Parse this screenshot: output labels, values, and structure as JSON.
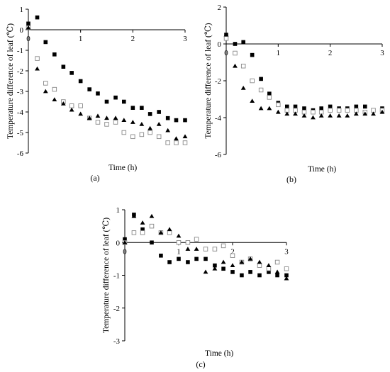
{
  "chart_data": [
    {
      "type": "scatter",
      "panel_label": "(a)",
      "xlabel": "Time (h)",
      "ylabel": "Temperature difference of leaf (℃)",
      "xlim": [
        0,
        3
      ],
      "ylim": [
        -6,
        1
      ],
      "xticks": [
        0,
        1,
        2,
        3
      ],
      "yticks": [
        1,
        0,
        -1,
        -2,
        -3,
        -4,
        -5,
        -6
      ],
      "grid": false,
      "series": [
        {
          "marker": "filled-square",
          "color": "#000000",
          "x": [
            0,
            0.17,
            0.33,
            0.5,
            0.67,
            0.83,
            1.0,
            1.17,
            1.33,
            1.5,
            1.67,
            1.83,
            2.0,
            2.17,
            2.33,
            2.5,
            2.67,
            2.83,
            3.0
          ],
          "y": [
            0.3,
            0.6,
            -0.6,
            -1.2,
            -1.8,
            -2.1,
            -2.5,
            -2.9,
            -3.1,
            -3.5,
            -3.3,
            -3.5,
            -3.8,
            -3.8,
            -4.1,
            -4.0,
            -4.3,
            -4.4,
            -4.4
          ]
        },
        {
          "marker": "open-square",
          "color": "#888888",
          "x": [
            0,
            0.17,
            0.33,
            0.5,
            0.67,
            0.83,
            1.0,
            1.17,
            1.33,
            1.5,
            1.67,
            1.83,
            2.0,
            2.17,
            2.33,
            2.5,
            2.67,
            2.83,
            3.0
          ],
          "y": [
            0.1,
            -1.4,
            -2.6,
            -2.9,
            -3.5,
            -3.7,
            -3.7,
            -4.3,
            -4.5,
            -4.6,
            -4.5,
            -5.0,
            -5.2,
            -5.1,
            -5.0,
            -5.2,
            -5.5,
            -5.5,
            -5.5
          ]
        },
        {
          "marker": "filled-triangle",
          "color": "#000000",
          "x": [
            0,
            0.17,
            0.33,
            0.5,
            0.67,
            0.83,
            1.0,
            1.17,
            1.33,
            1.5,
            1.67,
            1.83,
            2.0,
            2.17,
            2.33,
            2.5,
            2.67,
            2.83,
            3.0
          ],
          "y": [
            0.1,
            -1.9,
            -3.0,
            -3.4,
            -3.6,
            -3.9,
            -4.1,
            -4.3,
            -4.2,
            -4.3,
            -4.3,
            -4.4,
            -4.5,
            -4.6,
            -4.8,
            -4.6,
            -4.9,
            -5.3,
            -5.2
          ]
        }
      ]
    },
    {
      "type": "scatter",
      "panel_label": "(b)",
      "xlabel": "Time (h)",
      "ylabel": "Temperature difference of leaf (℃)",
      "xlim": [
        0,
        3
      ],
      "ylim": [
        -6,
        2
      ],
      "xticks": [
        0,
        1,
        2,
        3
      ],
      "yticks": [
        2,
        0,
        -2,
        -4,
        -6
      ],
      "grid": false,
      "series": [
        {
          "marker": "filled-square",
          "color": "#000000",
          "x": [
            0,
            0.17,
            0.33,
            0.5,
            0.67,
            0.83,
            1.0,
            1.17,
            1.33,
            1.5,
            1.67,
            1.83,
            2.0,
            2.17,
            2.33,
            2.5,
            2.67,
            2.83,
            3.0
          ],
          "y": [
            0.5,
            0.0,
            0.1,
            -0.6,
            -1.9,
            -2.7,
            -3.2,
            -3.4,
            -3.4,
            -3.5,
            -3.6,
            -3.5,
            -3.4,
            -3.5,
            -3.5,
            -3.4,
            -3.4,
            -3.6,
            -3.5
          ]
        },
        {
          "marker": "open-square",
          "color": "#888888",
          "x": [
            0,
            0.17,
            0.33,
            0.5,
            0.67,
            0.83,
            1.0,
            1.17,
            1.33,
            1.5,
            1.67,
            1.83,
            2.0,
            2.17,
            2.33,
            2.5,
            2.67,
            2.83,
            3.0
          ],
          "y": [
            0.3,
            -0.5,
            -1.2,
            -2.0,
            -2.5,
            -2.9,
            -3.3,
            -3.6,
            -3.6,
            -3.7,
            -3.7,
            -3.7,
            -3.6,
            -3.6,
            -3.6,
            -3.6,
            -3.7,
            -3.6,
            -3.6
          ]
        },
        {
          "marker": "filled-triangle",
          "color": "#000000",
          "x": [
            0,
            0.17,
            0.33,
            0.5,
            0.67,
            0.83,
            1.0,
            1.17,
            1.33,
            1.5,
            1.67,
            1.83,
            2.0,
            2.17,
            2.33,
            2.5,
            2.67,
            2.83,
            3.0
          ],
          "y": [
            0.5,
            -1.2,
            -2.4,
            -3.1,
            -3.5,
            -3.5,
            -3.7,
            -3.8,
            -3.8,
            -3.9,
            -4.0,
            -3.9,
            -3.9,
            -3.9,
            -3.9,
            -3.8,
            -3.8,
            -3.8,
            -3.7
          ]
        }
      ]
    },
    {
      "type": "scatter",
      "panel_label": "(c)",
      "xlabel": "Time (h)",
      "ylabel": "Temperature difference of leaf (℃)",
      "xlim": [
        0,
        3
      ],
      "ylim": [
        -3,
        1
      ],
      "xticks": [
        0,
        1,
        2,
        3
      ],
      "yticks": [
        1,
        0,
        -1,
        -2,
        -3
      ],
      "grid": false,
      "series": [
        {
          "marker": "filled-square",
          "color": "#000000",
          "x": [
            0,
            0.17,
            0.33,
            0.5,
            0.67,
            0.83,
            1.0,
            1.17,
            1.33,
            1.5,
            1.67,
            1.83,
            2.0,
            2.17,
            2.33,
            2.5,
            2.67,
            2.83,
            3.0
          ],
          "y": [
            0.1,
            0.85,
            0.4,
            0.0,
            -0.4,
            -0.6,
            -0.5,
            -0.6,
            -0.5,
            -0.5,
            -0.7,
            -0.8,
            -0.9,
            -1.0,
            -0.9,
            -1.0,
            -0.9,
            -1.0,
            -1.0
          ]
        },
        {
          "marker": "open-square",
          "color": "#888888",
          "x": [
            0,
            0.17,
            0.33,
            0.5,
            0.67,
            0.83,
            1.0,
            1.17,
            1.33,
            1.5,
            1.67,
            1.83,
            2.0,
            2.17,
            2.33,
            2.5,
            2.67,
            2.83,
            3.0
          ],
          "y": [
            0.0,
            0.3,
            0.3,
            0.5,
            0.3,
            0.3,
            0.0,
            0.0,
            0.1,
            -0.2,
            -0.2,
            -0.1,
            -0.4,
            -0.6,
            -0.5,
            -0.7,
            -0.8,
            -0.6,
            -0.8
          ]
        },
        {
          "marker": "filled-triangle",
          "color": "#000000",
          "x": [
            0,
            0.17,
            0.33,
            0.5,
            0.67,
            0.83,
            1.0,
            1.17,
            1.33,
            1.5,
            1.67,
            1.83,
            2.0,
            2.17,
            2.33,
            2.5,
            2.67,
            2.83,
            3.0
          ],
          "y": [
            0.0,
            0.8,
            0.6,
            0.8,
            0.3,
            0.4,
            0.2,
            -0.2,
            -0.2,
            -0.9,
            -0.8,
            -0.6,
            -0.7,
            -0.6,
            -0.5,
            -0.6,
            -0.7,
            -0.9,
            -1.1
          ]
        }
      ]
    }
  ]
}
